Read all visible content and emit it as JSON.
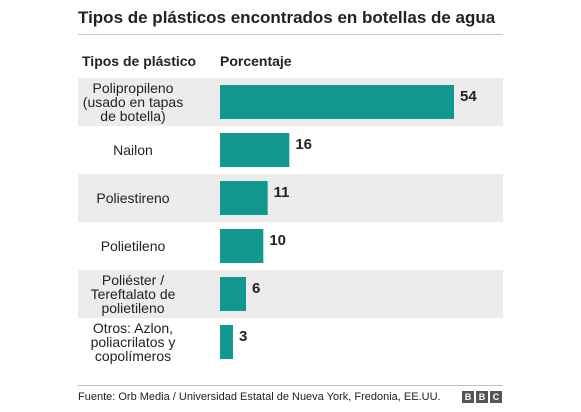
{
  "chart_data": {
    "type": "bar",
    "orientation": "horizontal",
    "title": "Tipos de plásticos encontrados en botellas de agua",
    "category_header": "Tipos de plástico",
    "value_header": "Porcentaje",
    "categories": [
      [
        "Polipropileno",
        "(usado en tapas",
        "de botella)"
      ],
      [
        "Nailon"
      ],
      [
        "Poliestireno"
      ],
      [
        "Polietileno"
      ],
      [
        "Poliéster /",
        "Tereftalato de",
        "polietileno"
      ],
      [
        "Otros: Azlon,",
        "poliacrilatos y",
        "copolímeros"
      ]
    ],
    "values": [
      54,
      16,
      11,
      10,
      6,
      3
    ],
    "xlim": [
      0,
      54
    ],
    "bar_color": "#12988f",
    "row_shading": "#ececec",
    "grid": false,
    "legend": "none"
  },
  "source": "Fuente: Orb Media / Universidad Estatal de Nueva York, Fredonia, EE.UU.",
  "logo": [
    "B",
    "B",
    "C"
  ]
}
